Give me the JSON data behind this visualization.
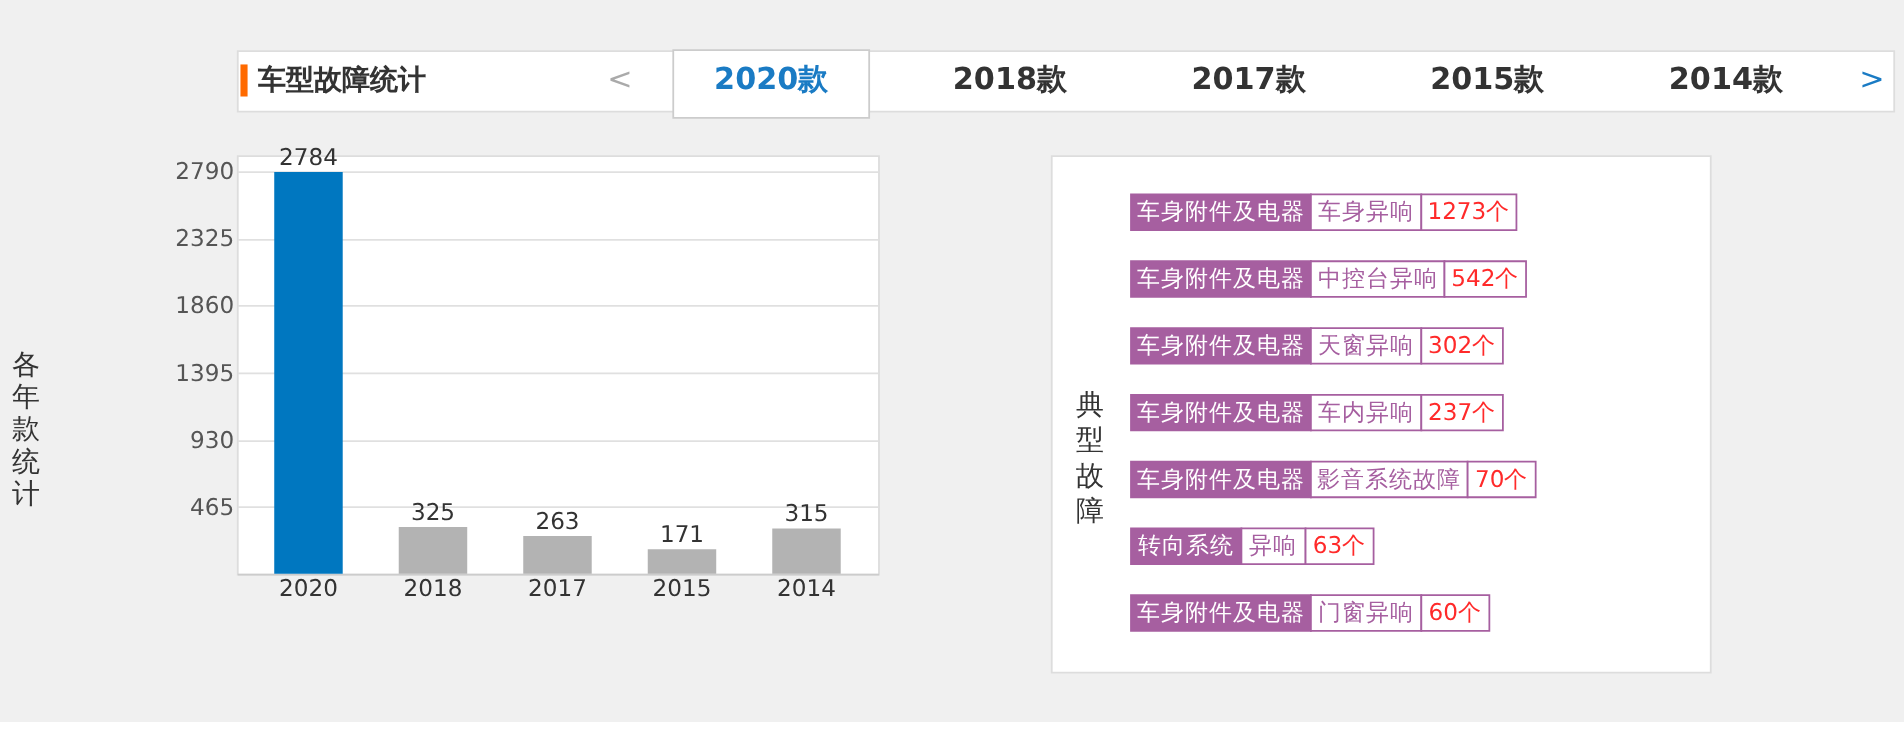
{
  "chart_data": [
    {
      "type": "bar",
      "title": "车型故障统计",
      "ylabel": "各年款统计",
      "annotations": [
        "<",
        "2020款",
        "2018款",
        "2017款",
        "2015款",
        "2014款",
        ">"
      ],
      "categories": [
        "2020",
        "2018",
        "2017",
        "2015",
        "2014"
      ],
      "values": [
        2784,
        325,
        263,
        171,
        315
      ],
      "colors": [
        "#0077c0",
        "#b3b3b3",
        "#b3b3b3",
        "#b3b3b3",
        "#b3b3b3"
      ],
      "ylim": [
        0,
        2900
      ],
      "yticks": [
        465,
        930,
        1395,
        1860,
        2325,
        2790
      ],
      "grid": "y",
      "data_labels": true
    },
    {
      "type": "other",
      "ylabel": "典型故障",
      "annotations": [
        "车身附件及电器",
        "车身附件及电器",
        "车身附件及电器",
        "车身附件及电器",
        "车身附件及电器",
        "转向系统",
        "车身附件及电器"
      ],
      "categories": [
        "车身异响",
        "中控台异响",
        "天窗异响",
        "车内异响",
        "影音系统故障",
        "异响",
        "门窗异响"
      ],
      "values": [
        1273,
        542,
        302,
        237,
        70,
        63,
        60
      ],
      "value_labels": [
        "1273个",
        "542个",
        "302个",
        "237个",
        "70个",
        "63个",
        "60个"
      ],
      "color": "#a65fa0"
    }
  ]
}
